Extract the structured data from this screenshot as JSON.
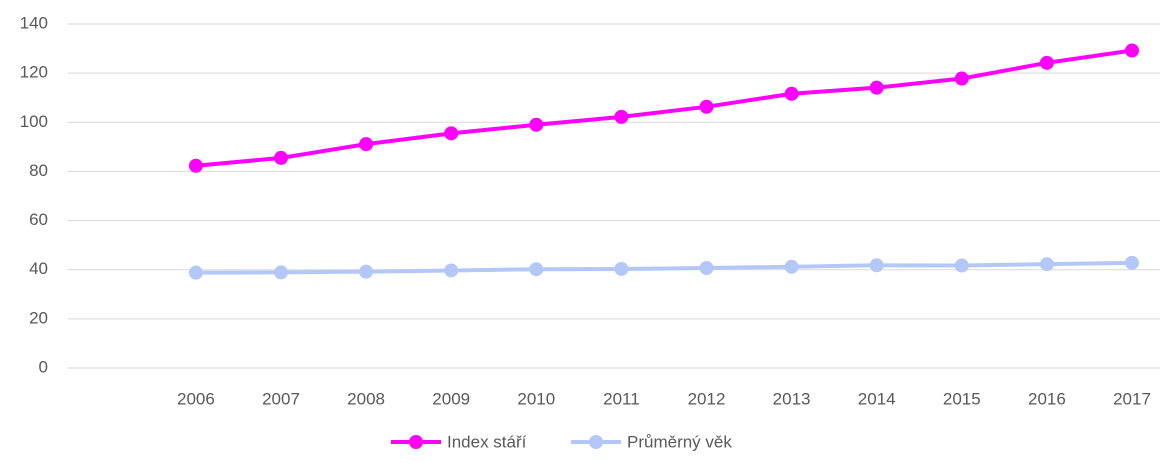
{
  "chart_data": {
    "type": "line",
    "categories": [
      null,
      "2006",
      "2007",
      "2008",
      "2009",
      "2010",
      "2011",
      "2012",
      "2013",
      "2014",
      "2015",
      "2016",
      "2017"
    ],
    "series": [
      {
        "name": "Index stáří",
        "color": "#ff00ff",
        "values": [
          null,
          82.3,
          85.5,
          91.1,
          95.5,
          99.0,
          102.2,
          106.3,
          111.6,
          114.1,
          117.8,
          124.2,
          129.2
        ]
      },
      {
        "name": "Průměrný věk",
        "color": "#b4c8f8",
        "values": [
          null,
          38.8,
          38.9,
          39.2,
          39.7,
          40.2,
          40.3,
          40.7,
          41.2,
          41.8,
          41.7,
          42.3,
          42.8
        ]
      }
    ],
    "ylim": [
      0,
      140
    ],
    "yticks": [
      0,
      20,
      40,
      60,
      80,
      100,
      120,
      140
    ],
    "grid": true,
    "legend": "bottom"
  }
}
